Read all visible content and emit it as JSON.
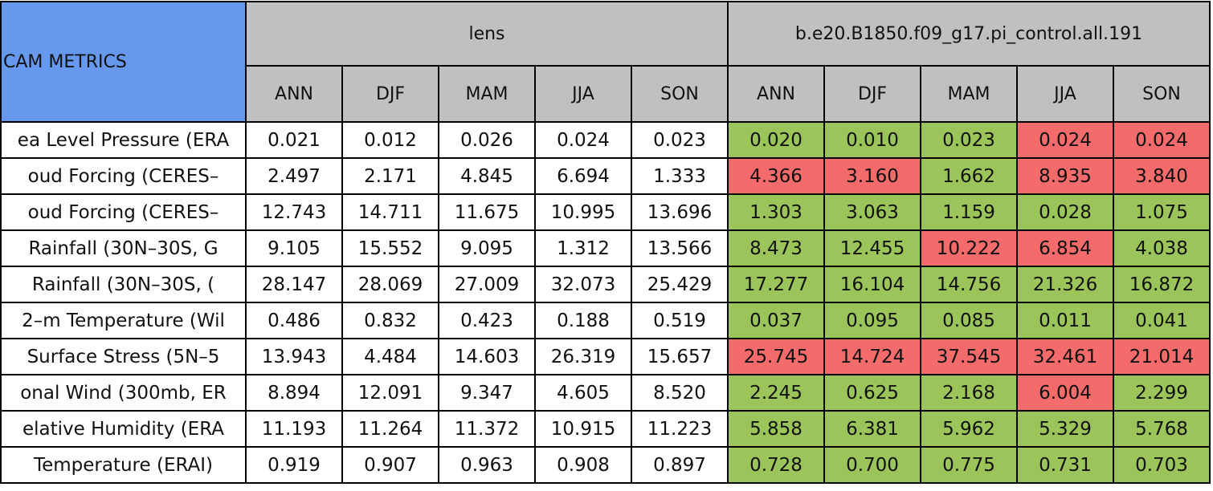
{
  "header": {
    "title": "CAM METRICS",
    "groups": [
      "lens",
      "b.e20.B1850.f09_g17.pi_control.all.191"
    ],
    "seasons": [
      "ANN",
      "DJF",
      "MAM",
      "JJA",
      "SON"
    ]
  },
  "table": {
    "rows": [
      {
        "label": "ea Level Pressure (ERA",
        "lens": [
          "0.021",
          "0.012",
          "0.026",
          "0.024",
          "0.023"
        ],
        "test": [
          "0.020",
          "0.010",
          "0.023",
          "0.024",
          "0.024"
        ],
        "colors": [
          "#9bc55a",
          "#9bc55a",
          "#9bc55a",
          "#f46b6b",
          "#f46b6b"
        ]
      },
      {
        "label": "oud Forcing (CERES–",
        "lens": [
          "2.497",
          "2.171",
          "4.845",
          "6.694",
          "1.333"
        ],
        "test": [
          "4.366",
          "3.160",
          "1.662",
          "8.935",
          "3.840"
        ],
        "colors": [
          "#f46b6b",
          "#f46b6b",
          "#9bc55a",
          "#f46b6b",
          "#f46b6b"
        ]
      },
      {
        "label": "oud Forcing (CERES–",
        "lens": [
          "12.743",
          "14.711",
          "11.675",
          "10.995",
          "13.696"
        ],
        "test": [
          "1.303",
          "3.063",
          "1.159",
          "0.028",
          "1.075"
        ],
        "colors": [
          "#9bc55a",
          "#9bc55a",
          "#9bc55a",
          "#9bc55a",
          "#9bc55a"
        ]
      },
      {
        "label": "Rainfall (30N–30S, G",
        "lens": [
          "9.105",
          "15.552",
          "9.095",
          "1.312",
          "13.566"
        ],
        "test": [
          "8.473",
          "12.455",
          "10.222",
          "6.854",
          "4.038"
        ],
        "colors": [
          "#9bc55a",
          "#9bc55a",
          "#f46b6b",
          "#f46b6b",
          "#9bc55a"
        ]
      },
      {
        "label": "Rainfall (30N–30S, (",
        "lens": [
          "28.147",
          "28.069",
          "27.009",
          "32.073",
          "25.429"
        ],
        "test": [
          "17.277",
          "16.104",
          "14.756",
          "21.326",
          "16.872"
        ],
        "colors": [
          "#9bc55a",
          "#9bc55a",
          "#9bc55a",
          "#9bc55a",
          "#9bc55a"
        ]
      },
      {
        "label": "2–m Temperature (Wil",
        "lens": [
          "0.486",
          "0.832",
          "0.423",
          "0.188",
          "0.519"
        ],
        "test": [
          "0.037",
          "0.095",
          "0.085",
          "0.011",
          "0.041"
        ],
        "colors": [
          "#9bc55a",
          "#9bc55a",
          "#9bc55a",
          "#9bc55a",
          "#9bc55a"
        ]
      },
      {
        "label": "Surface Stress (5N–5",
        "lens": [
          "13.943",
          "4.484",
          "14.603",
          "26.319",
          "15.657"
        ],
        "test": [
          "25.745",
          "14.724",
          "37.545",
          "32.461",
          "21.014"
        ],
        "colors": [
          "#f46b6b",
          "#f46b6b",
          "#f46b6b",
          "#f46b6b",
          "#f46b6b"
        ]
      },
      {
        "label": "onal Wind (300mb, ER",
        "lens": [
          "8.894",
          "12.091",
          "9.347",
          "4.605",
          "8.520"
        ],
        "test": [
          "2.245",
          "0.625",
          "2.168",
          "6.004",
          "2.299"
        ],
        "colors": [
          "#9bc55a",
          "#9bc55a",
          "#9bc55a",
          "#f46b6b",
          "#9bc55a"
        ]
      },
      {
        "label": "elative Humidity (ERA",
        "lens": [
          "11.193",
          "11.264",
          "11.372",
          "10.915",
          "11.223"
        ],
        "test": [
          "5.858",
          "6.381",
          "5.962",
          "5.329",
          "5.768"
        ],
        "colors": [
          "#9bc55a",
          "#9bc55a",
          "#9bc55a",
          "#9bc55a",
          "#9bc55a"
        ]
      },
      {
        "label": "Temperature (ERAI)",
        "lens": [
          "0.919",
          "0.907",
          "0.963",
          "0.908",
          "0.897"
        ],
        "test": [
          "0.728",
          "0.700",
          "0.775",
          "0.731",
          "0.703"
        ],
        "colors": [
          "#9bc55a",
          "#9bc55a",
          "#9bc55a",
          "#9bc55a",
          "#9bc55a"
        ]
      }
    ]
  }
}
